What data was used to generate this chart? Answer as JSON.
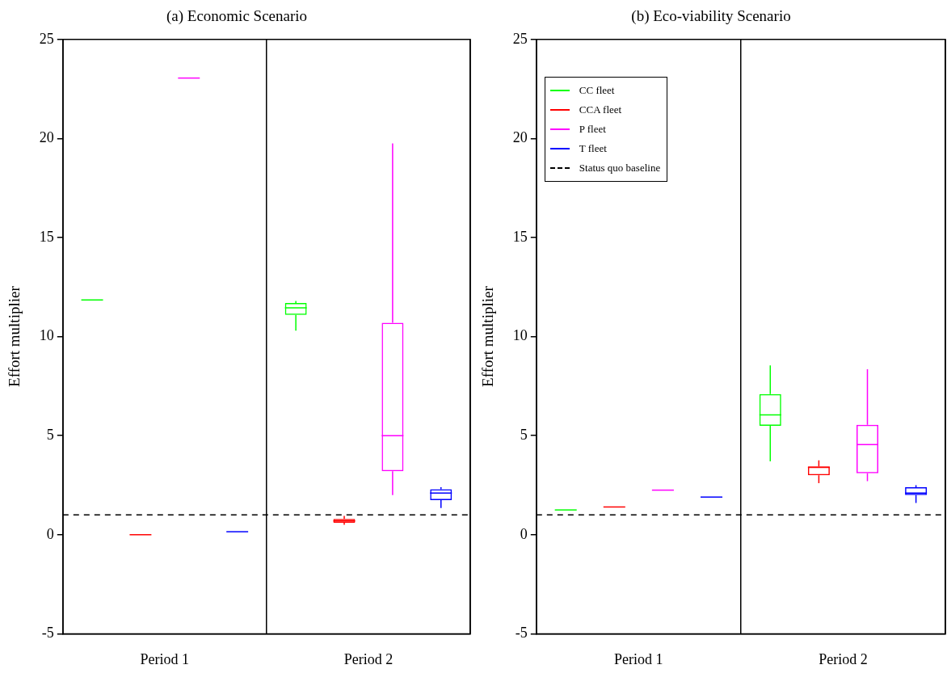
{
  "chart_data": [
    {
      "type": "box",
      "title": "(a) Economic Scenario",
      "ylabel": "Effort multiplier",
      "categories": [
        "Period 1",
        "Period 2"
      ],
      "series": [
        {
          "color": "#00ff00",
          "boxes": [
            {
              "low": 11.85,
              "q1": 11.85,
              "median": 11.85,
              "q3": 11.85,
              "high": 11.85
            },
            {
              "low": 10.3,
              "q1": 11.1,
              "median": 11.45,
              "q3": 11.7,
              "high": 11.8
            }
          ]
        },
        {
          "color": "#ff0000",
          "boxes": [
            {
              "low": 0,
              "q1": 0,
              "median": 0,
              "q3": 0,
              "high": 0
            },
            {
              "low": 0.5,
              "q1": 0.6,
              "median": 0.7,
              "q3": 0.8,
              "high": 0.95
            }
          ]
        },
        {
          "color": "#ff00ff",
          "boxes": [
            {
              "low": 23.05,
              "q1": 23.05,
              "median": 23.05,
              "q3": 23.05,
              "high": 23.05
            },
            {
              "low": 2.0,
              "q1": 3.2,
              "median": 5.0,
              "q3": 10.7,
              "high": 19.75
            }
          ]
        },
        {
          "color": "#0000ff",
          "boxes": [
            {
              "low": 0.15,
              "q1": 0.15,
              "median": 0.15,
              "q3": 0.15,
              "high": 0.15
            },
            {
              "low": 1.35,
              "q1": 1.75,
              "median": 2.1,
              "q3": 2.3,
              "high": 2.4
            }
          ]
        }
      ],
      "ylim": [
        -5,
        25
      ],
      "yticks": [
        -5,
        0,
        5,
        10,
        15,
        20,
        25
      ],
      "grid": "x",
      "ref_lines": [
        {
          "axis": "y",
          "value": 1,
          "color": "#000000",
          "line_style": "dashed"
        }
      ]
    },
    {
      "type": "box",
      "title": "(b) Eco-viability Scenario",
      "ylabel": "Effort multiplier",
      "categories": [
        "Period 1",
        "Period 2"
      ],
      "series": [
        {
          "name": "CC fleet",
          "color": "#00ff00",
          "boxes": [
            {
              "low": 1.25,
              "q1": 1.25,
              "median": 1.25,
              "q3": 1.25,
              "high": 1.25
            },
            {
              "low": 3.7,
              "q1": 5.5,
              "median": 6.05,
              "q3": 7.1,
              "high": 8.55
            }
          ]
        },
        {
          "name": "CCA fleet",
          "color": "#ff0000",
          "boxes": [
            {
              "low": 1.4,
              "q1": 1.4,
              "median": 1.4,
              "q3": 1.4,
              "high": 1.4
            },
            {
              "low": 2.6,
              "q1": 3.0,
              "median": 3.4,
              "q3": 3.45,
              "high": 3.75
            }
          ]
        },
        {
          "name": "P fleet",
          "color": "#ff00ff",
          "boxes": [
            {
              "low": 2.25,
              "q1": 2.25,
              "median": 2.25,
              "q3": 2.25,
              "high": 2.25
            },
            {
              "low": 2.7,
              "q1": 3.1,
              "median": 4.55,
              "q3": 5.55,
              "high": 8.35
            }
          ]
        },
        {
          "name": "T fleet",
          "color": "#0000ff",
          "boxes": [
            {
              "low": 1.9,
              "q1": 1.9,
              "median": 1.9,
              "q3": 1.9,
              "high": 1.9
            },
            {
              "low": 1.6,
              "q1": 2.0,
              "median": 2.1,
              "q3": 2.4,
              "high": 2.5
            }
          ]
        }
      ],
      "ylim": [
        -5,
        25
      ],
      "yticks": [
        -5,
        0,
        5,
        10,
        15,
        20,
        25
      ],
      "grid": "x",
      "legend": "top left",
      "ref_lines": [
        {
          "axis": "y",
          "value": 1,
          "label": "Status quo baseline",
          "color": "#000000",
          "line_style": "dashed"
        }
      ]
    }
  ]
}
